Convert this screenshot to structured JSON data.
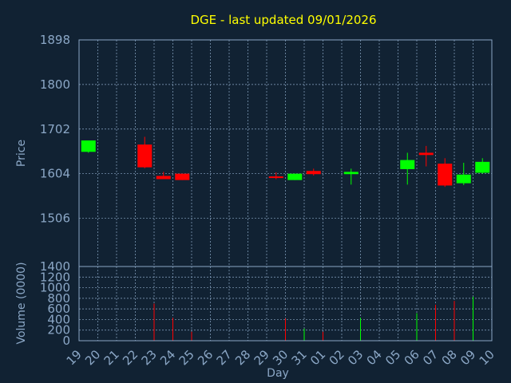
{
  "chart_data": {
    "type": "candlestick",
    "title": "DGE - last updated 09/01/2026",
    "xlabel": "Day",
    "price_panel": {
      "ylabel": "Price",
      "ylim": [
        1400,
        1898
      ],
      "y_ticks": [
        1898,
        1800,
        1702,
        1604,
        1506,
        1400
      ],
      "grid": true
    },
    "volume_panel": {
      "ylabel": "Volume (0000)",
      "ylim": [
        0,
        1400
      ],
      "y_ticks": [
        1200,
        1000,
        800,
        600,
        400,
        200,
        0
      ],
      "grid": true
    },
    "x_ticks": [
      "19",
      "20",
      "21",
      "22",
      "23",
      "24",
      "25",
      "26",
      "27",
      "28",
      "29",
      "30",
      "31",
      "01",
      "02",
      "03",
      "04",
      "05",
      "06",
      "07",
      "08",
      "09",
      "10"
    ],
    "up_color": "#00ff00",
    "down_color": "#ff0000",
    "candles": [
      {
        "day": "19",
        "open": 1652,
        "high": 1677,
        "low": 1650,
        "close": 1677,
        "volume": 0
      },
      {
        "day": "22",
        "open": 1668,
        "high": 1685,
        "low": 1616,
        "close": 1618,
        "volume": 700
      },
      {
        "day": "23",
        "open": 1599,
        "high": 1608,
        "low": 1592,
        "close": 1592,
        "volume": 430
      },
      {
        "day": "24",
        "open": 1604,
        "high": 1604,
        "low": 1590,
        "close": 1590,
        "volume": 170
      },
      {
        "day": "29",
        "open": 1598,
        "high": 1607,
        "low": 1592,
        "close": 1595,
        "volume": 420
      },
      {
        "day": "30",
        "open": 1590,
        "high": 1604,
        "low": 1590,
        "close": 1604,
        "volume": 230
      },
      {
        "day": "31",
        "open": 1610,
        "high": 1615,
        "low": 1600,
        "close": 1603,
        "volume": 170
      },
      {
        "day": "02",
        "open": 1603,
        "high": 1615,
        "low": 1580,
        "close": 1608,
        "volume": 430
      },
      {
        "day": "05",
        "open": 1614,
        "high": 1650,
        "low": 1580,
        "close": 1634,
        "volume": 520
      },
      {
        "day": "06",
        "open": 1650,
        "high": 1665,
        "low": 1620,
        "close": 1645,
        "volume": 680
      },
      {
        "day": "07",
        "open": 1626,
        "high": 1638,
        "low": 1575,
        "close": 1578,
        "volume": 750
      },
      {
        "day": "08",
        "open": 1583,
        "high": 1628,
        "low": 1579,
        "close": 1602,
        "volume": 830
      },
      {
        "day": "09",
        "open": 1606,
        "high": 1638,
        "low": 1604,
        "close": 1630,
        "volume": 860
      }
    ]
  }
}
